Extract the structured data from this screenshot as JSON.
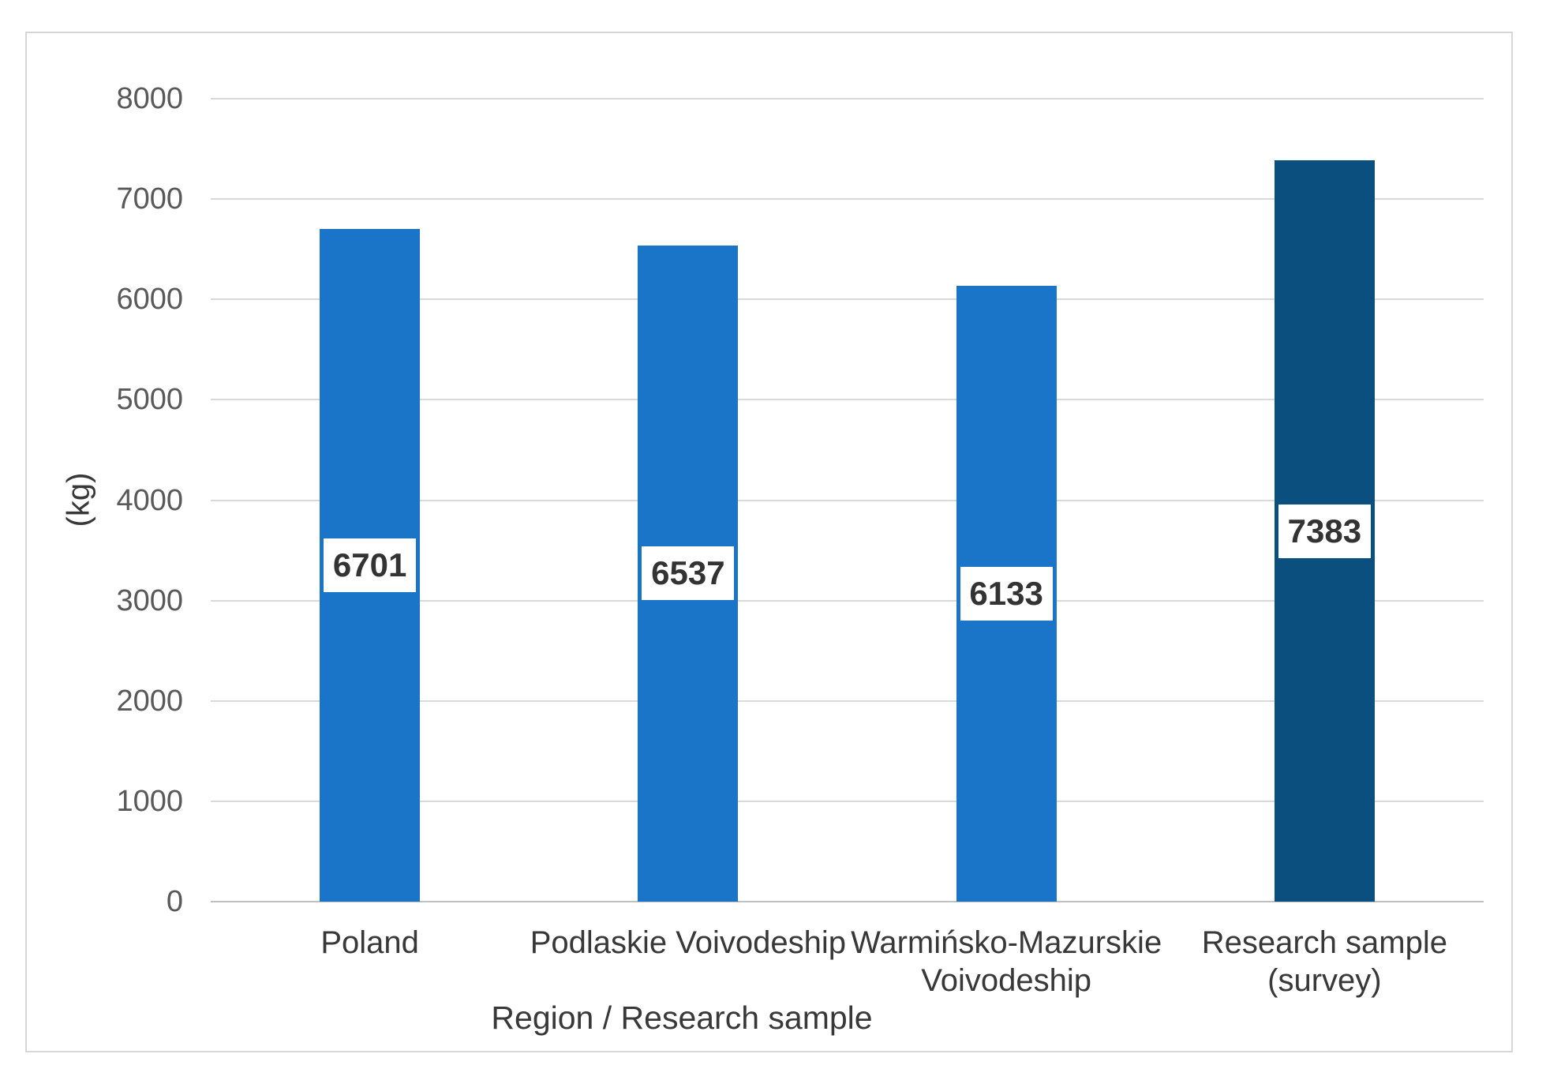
{
  "chart_data": {
    "type": "bar",
    "title": "",
    "categories": [
      "Poland",
      "Podlaskie Voivodeship",
      "Warmińsko-Mazurskie\nVoivodeship",
      "Research sample\n(survey)"
    ],
    "values": [
      6701,
      6537,
      6133,
      7383
    ],
    "data_labels": [
      "6701",
      "6537",
      "6133",
      "7383"
    ],
    "xlabel": "Region / Research sample",
    "ylabel": "(kg)",
    "ylim": [
      0,
      8000
    ],
    "yticks": [
      0,
      1000,
      2000,
      3000,
      4000,
      5000,
      6000,
      7000,
      8000
    ],
    "ytick_labels": [
      "0",
      "1000",
      "2000",
      "3000",
      "4000",
      "5000",
      "6000",
      "7000",
      "8000"
    ],
    "grid": true,
    "legend": false,
    "bar_colors": [
      "#1A74C8",
      "#1A74C8",
      "#1A74C8",
      "#0B4F7E"
    ],
    "colors": {
      "bar_blue": "#1A74C8",
      "bar_dark_blue": "#0B4F7E",
      "gridline": "#d9d9d9",
      "axis_line": "#c0c0c0",
      "tick_text": "#595959",
      "category_text": "#383838",
      "data_label_text": "#333333",
      "frame_border": "#d7d7d7"
    }
  }
}
